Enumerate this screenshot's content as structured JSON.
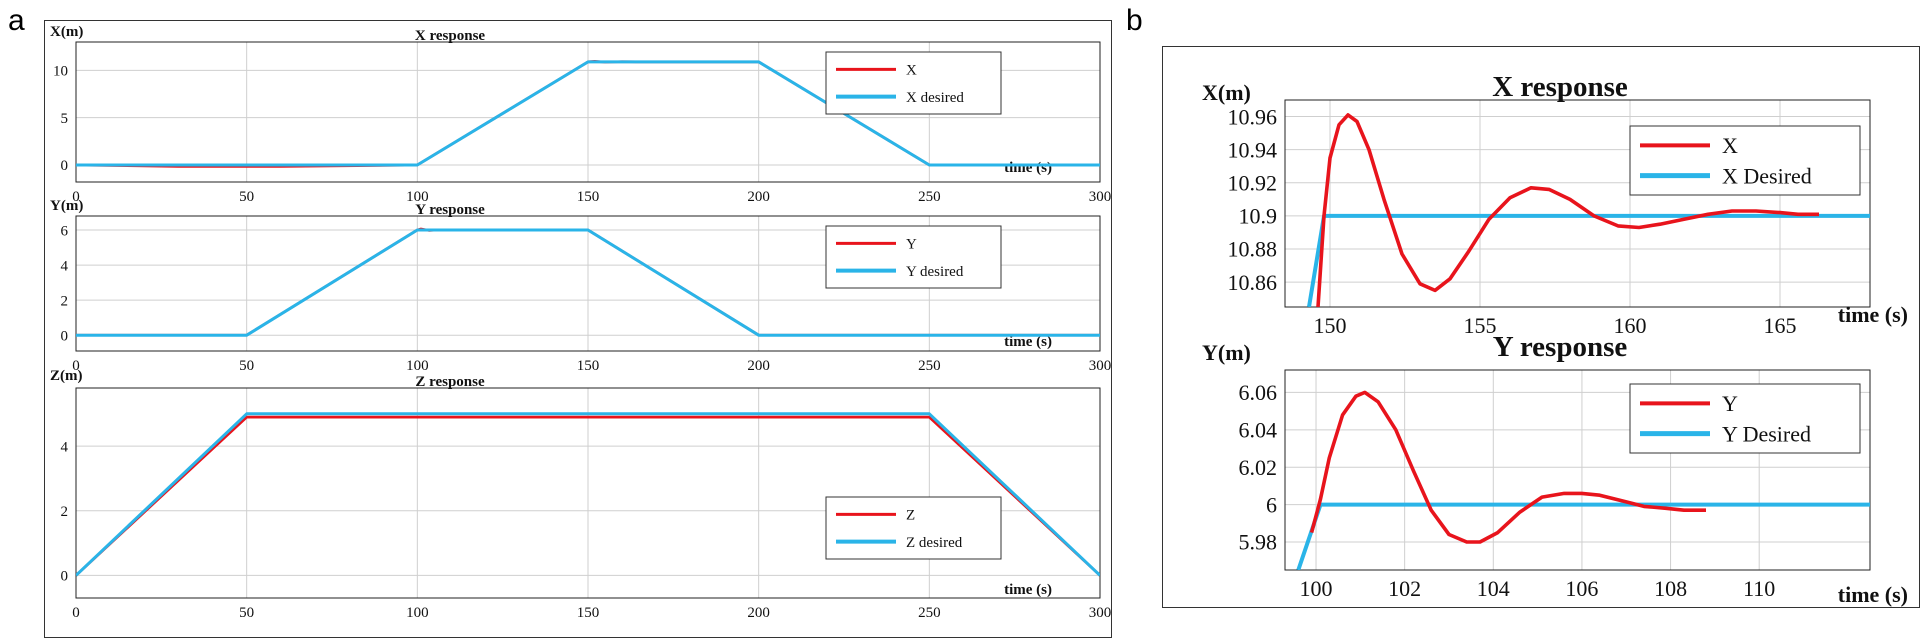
{
  "panels": [
    {
      "label": "a"
    },
    {
      "label": "b"
    }
  ],
  "colors": {
    "actual": "#e8141c",
    "desired": "#2ab4e8",
    "grid": "#cfcfcf",
    "axis": "#222222"
  },
  "chart_data": [
    {
      "id": "a-x",
      "panel": "a",
      "type": "line",
      "title": "X response",
      "ylabel": "X(m)",
      "xlabel": "time (s)",
      "xlim": [
        0,
        300
      ],
      "ylim": [
        -1.8,
        13
      ],
      "xticks": [
        0,
        50,
        100,
        150,
        200,
        250,
        300
      ],
      "yticks": [
        0,
        5,
        10
      ],
      "grid": true,
      "legend": "top-right",
      "series": [
        {
          "name": "X",
          "role": "actual",
          "x": [
            0,
            30,
            60,
            100,
            150,
            152,
            155,
            160,
            165,
            170,
            200,
            250,
            300
          ],
          "y": [
            0,
            -0.15,
            -0.15,
            0,
            10.9,
            10.96,
            10.86,
            10.92,
            10.9,
            10.9,
            10.9,
            0,
            0
          ]
        },
        {
          "name": "X desired",
          "role": "desired",
          "x": [
            0,
            100,
            150,
            200,
            250,
            300
          ],
          "y": [
            0,
            0,
            10.9,
            10.9,
            0,
            0
          ]
        }
      ]
    },
    {
      "id": "a-y",
      "panel": "a",
      "type": "line",
      "title": "Y response",
      "ylabel": "Y(m)",
      "xlabel": "time (s)",
      "xlim": [
        0,
        300
      ],
      "ylim": [
        -0.9,
        6.8
      ],
      "xticks": [
        0,
        50,
        100,
        150,
        200,
        250,
        300
      ],
      "yticks": [
        0,
        2,
        4,
        6
      ],
      "grid": true,
      "legend": "top-right",
      "series": [
        {
          "name": "Y",
          "role": "actual",
          "x": [
            0,
            50,
            100,
            101,
            103.5,
            106,
            109,
            150,
            200,
            300
          ],
          "y": [
            0,
            0,
            6,
            6.06,
            5.98,
            6.005,
            6,
            6,
            0,
            0
          ]
        },
        {
          "name": "Y desired",
          "role": "desired",
          "x": [
            0,
            50,
            100,
            150,
            200,
            300
          ],
          "y": [
            0,
            0,
            6,
            6,
            0,
            0
          ]
        }
      ]
    },
    {
      "id": "a-z",
      "panel": "a",
      "type": "line",
      "title": "Z response",
      "ylabel": "Z(m)",
      "xlabel": "time (s)",
      "xlim": [
        0,
        300
      ],
      "ylim": [
        -0.7,
        5.8
      ],
      "xticks": [
        0,
        50,
        100,
        150,
        200,
        250,
        300
      ],
      "yticks": [
        0,
        2,
        4
      ],
      "grid": true,
      "legend": "top-right",
      "series": [
        {
          "name": "Z",
          "role": "actual",
          "x": [
            0,
            50,
            100,
            250,
            300
          ],
          "y": [
            0,
            4.9,
            4.9,
            4.9,
            0
          ]
        },
        {
          "name": "Z desired",
          "role": "desired",
          "x": [
            0,
            50,
            250,
            300
          ],
          "y": [
            0,
            5,
            5,
            0
          ]
        }
      ]
    },
    {
      "id": "b-x",
      "panel": "b",
      "type": "line",
      "title": "X response",
      "ylabel": "X(m)",
      "xlabel": "time (s)",
      "xlim": [
        148.5,
        168
      ],
      "ylim": [
        10.845,
        10.97
      ],
      "xticks": [
        150,
        155,
        160,
        165
      ],
      "yticks": [
        10.86,
        10.88,
        10.9,
        10.92,
        10.94,
        10.96
      ],
      "ytick_labels": [
        "10.86",
        "10.88",
        "10.9",
        "10.92",
        "10.94",
        "10.96"
      ],
      "grid": true,
      "legend": "top-right",
      "series": [
        {
          "name": "X",
          "role": "actual",
          "x": [
            149.6,
            149.8,
            150.0,
            150.3,
            150.6,
            150.9,
            151.3,
            151.8,
            152.4,
            153.0,
            153.5,
            154.0,
            154.6,
            155.3,
            156.0,
            156.7,
            157.3,
            158.0,
            158.8,
            159.6,
            160.3,
            161.0,
            161.8,
            162.6,
            163.4,
            164.2,
            165.0,
            165.6,
            166.3
          ],
          "y": [
            10.845,
            10.9,
            10.935,
            10.955,
            10.961,
            10.957,
            10.94,
            10.91,
            10.877,
            10.859,
            10.855,
            10.862,
            10.878,
            10.898,
            10.911,
            10.917,
            10.916,
            10.91,
            10.9,
            10.894,
            10.893,
            10.895,
            10.898,
            10.901,
            10.903,
            10.903,
            10.902,
            10.901,
            10.901
          ]
        },
        {
          "name": "X Desired",
          "role": "desired",
          "x": [
            149.3,
            149.8,
            168
          ],
          "y": [
            10.845,
            10.9,
            10.9
          ]
        }
      ]
    },
    {
      "id": "b-y",
      "panel": "b",
      "type": "line",
      "title": "Y response",
      "ylabel": "Y(m)",
      "xlabel": "time (s)",
      "xlim": [
        99.3,
        112.5
      ],
      "ylim": [
        5.965,
        6.072
      ],
      "xticks": [
        100,
        102,
        104,
        106,
        108,
        110
      ],
      "yticks": [
        5.98,
        6,
        6.02,
        6.04,
        6.06
      ],
      "ytick_labels": [
        "5.98",
        "6",
        "6.02",
        "6.04",
        "6.06"
      ],
      "grid": true,
      "legend": "top-right",
      "series": [
        {
          "name": "Y",
          "role": "actual",
          "x": [
            99.9,
            100.1,
            100.3,
            100.6,
            100.9,
            101.1,
            101.4,
            101.8,
            102.2,
            102.6,
            103.0,
            103.4,
            103.7,
            104.1,
            104.6,
            105.1,
            105.6,
            106.0,
            106.4,
            106.9,
            107.4,
            107.9,
            108.3,
            108.8
          ],
          "y": [
            5.985,
            6.003,
            6.025,
            6.048,
            6.058,
            6.06,
            6.055,
            6.04,
            6.018,
            5.997,
            5.984,
            5.98,
            5.98,
            5.985,
            5.996,
            6.004,
            6.006,
            6.006,
            6.005,
            6.002,
            5.999,
            5.998,
            5.997,
            5.997
          ]
        },
        {
          "name": "Y Desired",
          "role": "desired",
          "x": [
            99.6,
            100.1,
            112.5
          ],
          "y": [
            5.965,
            6.0,
            6.0
          ]
        }
      ]
    }
  ]
}
